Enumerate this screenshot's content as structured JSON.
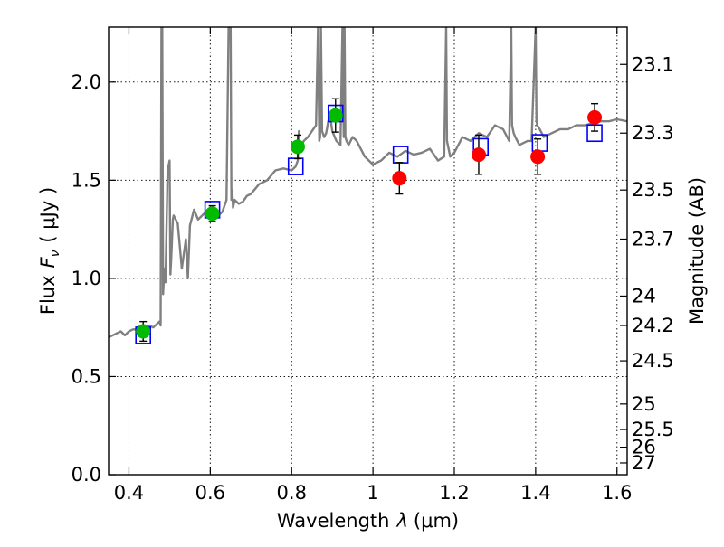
{
  "chart_data": {
    "type": "scatter",
    "title": "",
    "xlabel_prefix": "Wavelength",
    "xlabel_symbol": "λ",
    "xlabel_unit": "(μm)",
    "ylabel_prefix": "Flux",
    "ylabel_symbol": "F",
    "ylabel_subscript": "ν",
    "ylabel_unit": "( μJy )",
    "y2label": "Magnitude (AB)",
    "xlim": [
      0.35,
      1.625
    ],
    "ylim": [
      0.0,
      2.28
    ],
    "grid": true,
    "x_ticks": [
      {
        "value": 0.4,
        "label": "0.4"
      },
      {
        "value": 0.6,
        "label": "0.6"
      },
      {
        "value": 0.8,
        "label": "0.8"
      },
      {
        "value": 1.0,
        "label": "1"
      },
      {
        "value": 1.2,
        "label": "1.2"
      },
      {
        "value": 1.4,
        "label": "1.4"
      },
      {
        "value": 1.6,
        "label": "1.6"
      }
    ],
    "y_ticks": [
      {
        "value": 0.0,
        "label": "0.0"
      },
      {
        "value": 0.5,
        "label": "0.5"
      },
      {
        "value": 1.0,
        "label": "1.0"
      },
      {
        "value": 1.5,
        "label": "1.5"
      },
      {
        "value": 2.0,
        "label": "2.0"
      }
    ],
    "y2_ticks": [
      {
        "flux": 2.09,
        "label": "23.1"
      },
      {
        "flux": 1.74,
        "label": "23.3"
      },
      {
        "flux": 1.45,
        "label": "23.5"
      },
      {
        "flux": 1.2,
        "label": "23.7"
      },
      {
        "flux": 0.91,
        "label": "24"
      },
      {
        "flux": 0.76,
        "label": "24.2"
      },
      {
        "flux": 0.58,
        "label": "24.5"
      },
      {
        "flux": 0.36,
        "label": "25"
      },
      {
        "flux": 0.23,
        "label": "25.5"
      },
      {
        "flux": 0.14,
        "label": "26"
      },
      {
        "flux": 0.06,
        "label": "27"
      }
    ],
    "series": [
      {
        "name": "model spectrum",
        "kind": "line",
        "color": "#808080",
        "x": [
          0.35,
          0.36,
          0.37,
          0.38,
          0.39,
          0.4,
          0.41,
          0.42,
          0.43,
          0.44,
          0.45,
          0.46,
          0.47,
          0.475,
          0.478,
          0.48,
          0.482,
          0.484,
          0.486,
          0.488,
          0.49,
          0.495,
          0.5,
          0.502,
          0.504,
          0.506,
          0.508,
          0.51,
          0.52,
          0.53,
          0.54,
          0.545,
          0.55,
          0.56,
          0.57,
          0.58,
          0.59,
          0.6,
          0.605,
          0.61,
          0.62,
          0.63,
          0.64,
          0.645,
          0.65,
          0.652,
          0.654,
          0.656,
          0.658,
          0.66,
          0.67,
          0.68,
          0.69,
          0.7,
          0.72,
          0.74,
          0.76,
          0.78,
          0.8,
          0.81,
          0.815,
          0.818,
          0.82,
          0.83,
          0.84,
          0.85,
          0.86,
          0.865,
          0.868,
          0.87,
          0.872,
          0.875,
          0.88,
          0.885,
          0.89,
          0.895,
          0.9,
          0.91,
          0.92,
          0.925,
          0.928,
          0.93,
          0.932,
          0.935,
          0.94,
          0.95,
          0.96,
          0.97,
          0.98,
          1.0,
          1.02,
          1.04,
          1.06,
          1.08,
          1.1,
          1.12,
          1.14,
          1.16,
          1.175,
          1.18,
          1.182,
          1.184,
          1.186,
          1.19,
          1.2,
          1.22,
          1.24,
          1.26,
          1.28,
          1.3,
          1.32,
          1.335,
          1.34,
          1.342,
          1.344,
          1.346,
          1.35,
          1.36,
          1.38,
          1.39,
          1.4,
          1.402,
          1.404,
          1.41,
          1.42,
          1.44,
          1.46,
          1.48,
          1.5,
          1.52,
          1.54,
          1.56,
          1.58,
          1.6,
          1.625
        ],
        "y": [
          0.7,
          0.71,
          0.72,
          0.73,
          0.71,
          0.73,
          0.74,
          0.74,
          0.75,
          0.74,
          0.76,
          0.75,
          0.77,
          0.78,
          0.76,
          2.28,
          2.28,
          0.92,
          1.0,
          1.05,
          0.98,
          1.55,
          1.6,
          1.02,
          1.1,
          1.2,
          1.3,
          1.32,
          1.28,
          1.05,
          1.2,
          1.0,
          1.27,
          1.35,
          1.3,
          1.32,
          1.34,
          1.33,
          1.35,
          1.3,
          1.32,
          1.34,
          1.4,
          2.28,
          2.28,
          1.4,
          1.45,
          1.36,
          1.38,
          1.4,
          1.38,
          1.39,
          1.42,
          1.43,
          1.48,
          1.5,
          1.55,
          1.56,
          1.55,
          1.57,
          1.6,
          1.75,
          1.66,
          1.7,
          1.72,
          1.75,
          1.78,
          2.28,
          1.7,
          1.72,
          2.28,
          1.75,
          1.72,
          1.74,
          1.8,
          1.82,
          1.75,
          1.7,
          1.68,
          2.28,
          1.72,
          2.28,
          1.72,
          1.7,
          1.68,
          1.72,
          1.7,
          1.66,
          1.62,
          1.58,
          1.6,
          1.64,
          1.62,
          1.65,
          1.63,
          1.64,
          1.66,
          1.6,
          1.62,
          2.28,
          1.7,
          1.68,
          1.66,
          1.62,
          1.64,
          1.72,
          1.7,
          1.74,
          1.72,
          1.78,
          1.76,
          1.7,
          2.28,
          1.78,
          1.76,
          1.74,
          1.72,
          1.68,
          1.7,
          1.7,
          2.28,
          1.8,
          1.78,
          1.76,
          1.72,
          1.74,
          1.76,
          1.76,
          1.78,
          1.78,
          1.79,
          1.8,
          1.8,
          1.81,
          1.8
        ]
      },
      {
        "name": "model photometry",
        "kind": "square",
        "color": "#0000ff",
        "x": [
          0.435,
          0.605,
          0.81,
          0.908,
          1.068,
          1.265,
          1.41,
          1.545
        ],
        "y": [
          0.71,
          1.35,
          1.57,
          1.84,
          1.63,
          1.67,
          1.69,
          1.74
        ]
      },
      {
        "name": "observed optical",
        "kind": "point",
        "color": "#00bb00",
        "x": [
          0.435,
          0.605,
          0.815,
          0.908
        ],
        "y": [
          0.73,
          1.33,
          1.67,
          1.83
        ],
        "err": [
          0.05,
          0.04,
          0.06,
          0.085
        ]
      },
      {
        "name": "observed near-IR",
        "kind": "point",
        "color": "#ff0000",
        "x": [
          1.065,
          1.26,
          1.405,
          1.545
        ],
        "y": [
          1.51,
          1.63,
          1.62,
          1.82
        ],
        "err": [
          0.08,
          0.1,
          0.09,
          0.07
        ]
      }
    ]
  }
}
